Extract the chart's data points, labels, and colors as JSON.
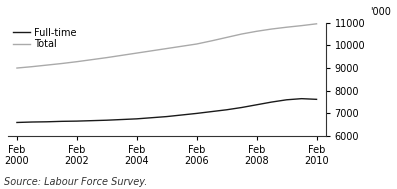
{
  "title": "",
  "source": "Source: Labour Force Survey.",
  "legend_entries": [
    "Full-time",
    "Total"
  ],
  "x_tick_labels": [
    "Feb\n2000",
    "Feb\n2002",
    "Feb\n2004",
    "Feb\n2006",
    "Feb\n2008",
    "Feb\n2010"
  ],
  "x_tick_positions": [
    0,
    2,
    4,
    6,
    8,
    10
  ],
  "ylim": [
    6000,
    11000
  ],
  "yticks": [
    6000,
    7000,
    8000,
    9000,
    10000,
    11000
  ],
  "ylabel": "'000",
  "fulltime_x": [
    0,
    0.5,
    1,
    1.5,
    2,
    2.5,
    3,
    3.5,
    4,
    4.5,
    5,
    5.5,
    6,
    6.5,
    7,
    7.5,
    8,
    8.5,
    9,
    9.5,
    10
  ],
  "fulltime_y": [
    6600,
    6620,
    6630,
    6650,
    6660,
    6680,
    6700,
    6730,
    6760,
    6810,
    6860,
    6930,
    7000,
    7080,
    7160,
    7260,
    7380,
    7500,
    7600,
    7650,
    7620
  ],
  "total_x": [
    0,
    0.5,
    1,
    1.5,
    2,
    2.5,
    3,
    3.5,
    4,
    4.5,
    5,
    5.5,
    6,
    6.5,
    7,
    7.5,
    8,
    8.5,
    9,
    9.5,
    10
  ],
  "total_y": [
    9000,
    9060,
    9130,
    9200,
    9280,
    9370,
    9460,
    9560,
    9660,
    9760,
    9860,
    9960,
    10060,
    10200,
    10350,
    10500,
    10620,
    10720,
    10800,
    10870,
    10950
  ],
  "fulltime_color": "#1a1a1a",
  "total_color": "#aaaaaa",
  "line_width": 1.0,
  "background_color": "#ffffff",
  "font_size_legend": 7,
  "font_size_ticks": 7,
  "font_size_source": 7,
  "font_size_ylabel": 7
}
